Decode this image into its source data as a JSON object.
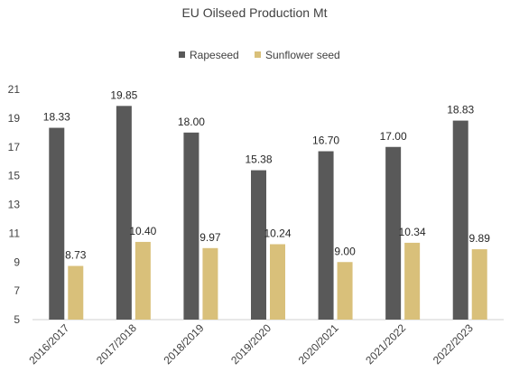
{
  "chart_data": {
    "type": "bar",
    "title": "EU Oilseed Production Mt",
    "categories": [
      "2016/2017",
      "2017/2018",
      "2018/2019",
      "2019/2020",
      "2020/2021",
      "2021/2022",
      "2022/2023"
    ],
    "series": [
      {
        "name": "Rapeseed",
        "color": "#595959",
        "values": [
          18.33,
          19.85,
          18.0,
          15.38,
          16.7,
          17.0,
          18.83
        ],
        "labels": [
          "18.33",
          "19.85",
          "18.00",
          "15.38",
          "16.70",
          "17.00",
          "18.83"
        ]
      },
      {
        "name": "Sunflower seed",
        "color": "#D9C07A",
        "values": [
          8.73,
          10.4,
          9.97,
          10.24,
          9.0,
          10.34,
          9.89
        ],
        "labels": [
          "8.73",
          "10.40",
          "9.97",
          "10.24",
          "9.00",
          "10.34",
          "9.89"
        ]
      }
    ],
    "ylim": [
      5,
      21
    ],
    "yticks": [
      "5",
      "7",
      "9",
      "11",
      "13",
      "15",
      "17",
      "19",
      "21"
    ],
    "grid": false,
    "legend_position": "top-center"
  }
}
